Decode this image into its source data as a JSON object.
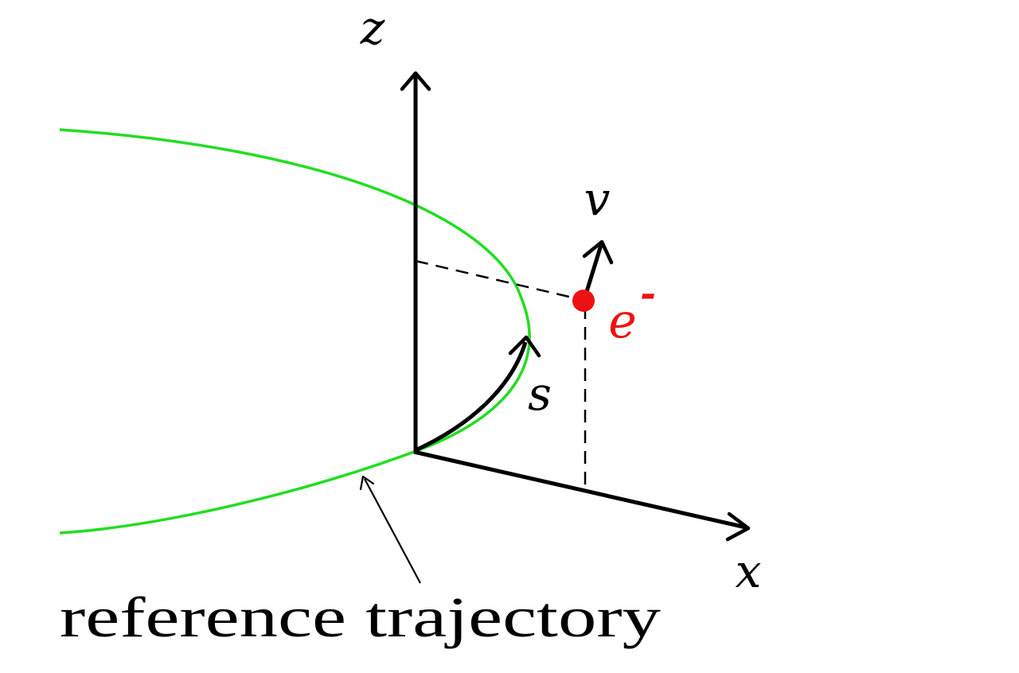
{
  "labels": {
    "z_axis": "z",
    "x_axis": "x",
    "velocity": "v",
    "arc_length": "s",
    "electron": "e",
    "electron_charge": "-",
    "reference_trajectory": "reference trajectory"
  },
  "colors": {
    "trajectory": "#22dd22",
    "electron": "#ee1111",
    "ink": "#000000"
  }
}
